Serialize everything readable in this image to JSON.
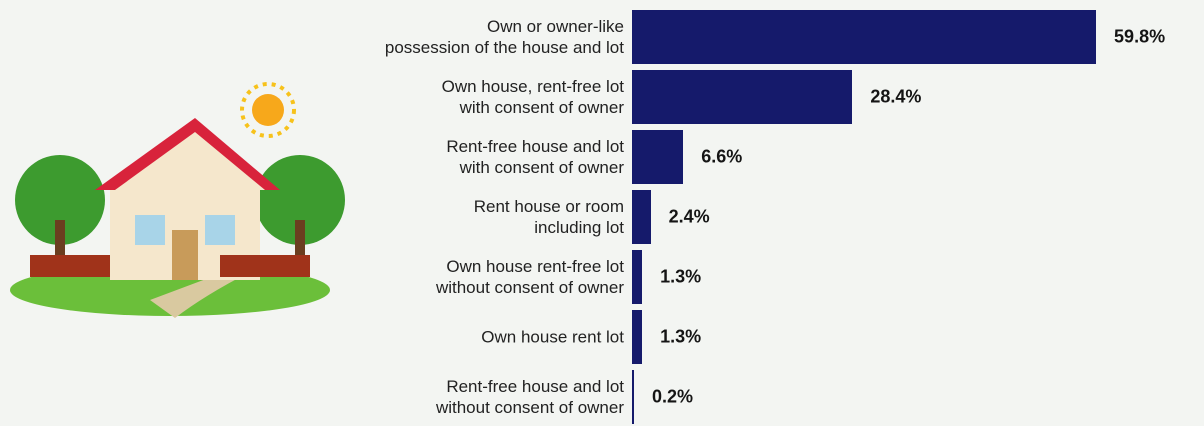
{
  "chart_data": {
    "type": "bar",
    "orientation": "horizontal",
    "categories": [
      "Own or owner-like\npossession of the house and lot",
      "Own house, rent-free lot\nwith consent of owner",
      "Rent-free house and lot\nwith consent of owner",
      "Rent house or room\nincluding lot",
      "Own house rent-free lot\nwithout consent of owner",
      "Own house rent lot",
      "Rent-free house and lot\nwithout consent of owner"
    ],
    "values": [
      59.8,
      28.4,
      6.6,
      2.4,
      1.3,
      1.3,
      0.2
    ],
    "value_labels": [
      "59.8%",
      "28.4%",
      "6.6%",
      "2.4%",
      "1.3%",
      "1.3%",
      "0.2%"
    ],
    "color": "#151a6b"
  }
}
